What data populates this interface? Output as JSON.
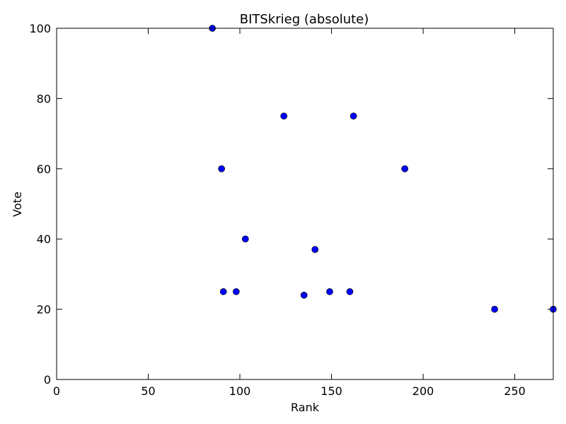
{
  "chart_data": {
    "type": "scatter",
    "title": "BITSkrieg (absolute)",
    "xlabel": "Rank",
    "ylabel": "Vote",
    "xlim": [
      0,
      271
    ],
    "ylim": [
      0,
      100
    ],
    "xticks": [
      0,
      50,
      100,
      150,
      200,
      250
    ],
    "yticks": [
      0,
      20,
      40,
      60,
      80,
      100
    ],
    "grid": false,
    "marker_color": "#0000ff",
    "points": [
      {
        "x": 85,
        "y": 100
      },
      {
        "x": 90,
        "y": 60
      },
      {
        "x": 91,
        "y": 25
      },
      {
        "x": 98,
        "y": 25
      },
      {
        "x": 103,
        "y": 40
      },
      {
        "x": 124,
        "y": 75
      },
      {
        "x": 135,
        "y": 24
      },
      {
        "x": 141,
        "y": 37
      },
      {
        "x": 149,
        "y": 25
      },
      {
        "x": 160,
        "y": 25
      },
      {
        "x": 162,
        "y": 75
      },
      {
        "x": 190,
        "y": 60
      },
      {
        "x": 239,
        "y": 20
      },
      {
        "x": 271,
        "y": 20
      }
    ]
  }
}
